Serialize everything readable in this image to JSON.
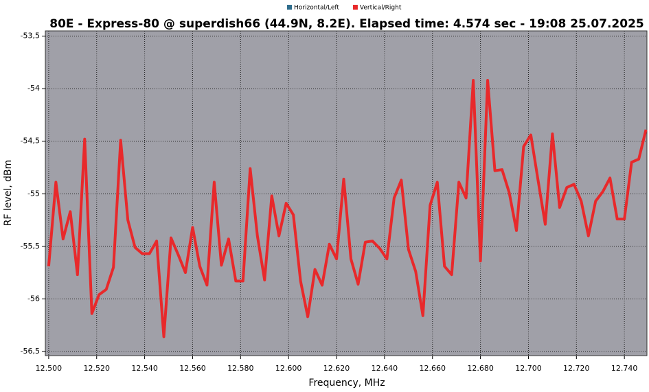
{
  "chart_data": {
    "type": "line",
    "title": "80E - Express-80  @ superdish66 (44.9N, 8.2E). Elapsed time: 4.574 sec - 19:08 25.07.2025",
    "x_label": "Frequency, MHz",
    "y_label": "RF level, dBm",
    "x": [
      12.5,
      12.503,
      12.506,
      12.509,
      12.512,
      12.515,
      12.518,
      12.521,
      12.524,
      12.527,
      12.53,
      12.533,
      12.536,
      12.539,
      12.542,
      12.545,
      12.548,
      12.551,
      12.554,
      12.557,
      12.56,
      12.563,
      12.566,
      12.569,
      12.572,
      12.575,
      12.578,
      12.581,
      12.584,
      12.587,
      12.59,
      12.593,
      12.596,
      12.599,
      12.602,
      12.605,
      12.608,
      12.611,
      12.614,
      12.617,
      12.62,
      12.623,
      12.626,
      12.629,
      12.632,
      12.635,
      12.638,
      12.641,
      12.644,
      12.647,
      12.65,
      12.653,
      12.656,
      12.659,
      12.662,
      12.665,
      12.668,
      12.671,
      12.674,
      12.677,
      12.68,
      12.683,
      12.686,
      12.689,
      12.692,
      12.695,
      12.698,
      12.701,
      12.704,
      12.707,
      12.71,
      12.713,
      12.716,
      12.719,
      12.722,
      12.725,
      12.728,
      12.731,
      12.734,
      12.737,
      12.74,
      12.743,
      12.746,
      12.749
    ],
    "series": [
      {
        "name": "Horizontal/Left",
        "color": "#2f6d8c",
        "values": [
          null,
          null,
          null,
          null,
          null,
          null,
          null,
          null,
          null,
          null,
          null,
          null,
          null,
          null,
          null,
          null,
          null,
          null,
          null,
          null,
          null,
          null,
          null,
          null,
          null,
          null,
          null,
          null,
          null,
          null,
          null,
          null,
          null,
          null,
          null,
          null,
          null,
          null,
          null,
          null,
          null,
          null,
          null,
          null,
          null,
          null,
          null,
          null,
          null,
          null,
          null,
          null,
          null,
          null,
          null,
          null,
          null,
          null,
          null,
          null,
          null,
          null,
          null,
          null,
          null,
          null,
          null,
          null,
          null,
          null,
          null,
          null,
          null,
          null,
          null,
          null,
          null,
          null,
          null,
          null,
          null,
          null,
          null,
          null
        ]
      },
      {
        "name": "Vertical/Right",
        "color": "#e8292b",
        "values": [
          -55.69,
          -54.89,
          -55.43,
          -55.17,
          -55.77,
          -54.48,
          -56.14,
          -55.96,
          -55.91,
          -55.7,
          -54.49,
          -55.25,
          -55.51,
          -55.57,
          -55.57,
          -55.45,
          -56.36,
          -55.42,
          -55.58,
          -55.75,
          -55.32,
          -55.69,
          -55.87,
          -54.89,
          -55.68,
          -55.43,
          -55.83,
          -55.83,
          -54.76,
          -55.4,
          -55.82,
          -55.02,
          -55.4,
          -55.09,
          -55.2,
          -55.83,
          -56.17,
          -55.72,
          -55.87,
          -55.48,
          -55.62,
          -54.86,
          -55.62,
          -55.86,
          -55.46,
          -55.45,
          -55.52,
          -55.62,
          -55.04,
          -54.87,
          -55.53,
          -55.74,
          -56.16,
          -55.11,
          -54.89,
          -55.69,
          -55.77,
          -54.89,
          -55.04,
          -53.92,
          -55.64,
          -53.92,
          -54.78,
          -54.77,
          -54.99,
          -55.35,
          -54.55,
          -54.44,
          -54.87,
          -55.29,
          -54.43,
          -55.13,
          -54.94,
          -54.91,
          -55.07,
          -55.4,
          -55.07,
          -54.98,
          -54.85,
          -55.24,
          -55.24,
          -54.7,
          -54.67,
          -54.39
        ]
      }
    ],
    "xlim": [
      12.4986,
      12.7494
    ],
    "ylim": [
      -56.54,
      -53.45
    ],
    "xticks": [
      {
        "value": 12.5,
        "label": "12.500"
      },
      {
        "value": 12.52,
        "label": "12.520"
      },
      {
        "value": 12.54,
        "label": "12.540"
      },
      {
        "value": 12.56,
        "label": "12.560"
      },
      {
        "value": 12.58,
        "label": "12.580"
      },
      {
        "value": 12.6,
        "label": "12.600"
      },
      {
        "value": 12.62,
        "label": "12.620"
      },
      {
        "value": 12.64,
        "label": "12.640"
      },
      {
        "value": 12.66,
        "label": "12.660"
      },
      {
        "value": 12.68,
        "label": "12.680"
      },
      {
        "value": 12.7,
        "label": "12.700"
      },
      {
        "value": 12.72,
        "label": "12.720"
      },
      {
        "value": 12.74,
        "label": "12.740"
      }
    ],
    "yticks": [
      {
        "value": -53.5,
        "label": "-53,5"
      },
      -54,
      {
        "value": -54.5,
        "label": "-54,5"
      },
      -55,
      {
        "value": -55.5,
        "label": "-55,5"
      },
      -56,
      {
        "value": -56.5,
        "label": "-56,5"
      }
    ],
    "grid": true,
    "legend": "top"
  }
}
